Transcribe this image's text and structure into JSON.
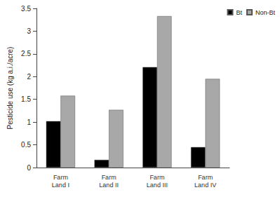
{
  "chart_data": {
    "type": "bar",
    "categories": [
      "Farm Land I",
      "Farm Land II",
      "Farm Land III",
      "Farm Land IV"
    ],
    "series": [
      {
        "name": "Bt",
        "color": "#000000",
        "values": [
          1.02,
          0.17,
          2.21,
          0.45
        ]
      },
      {
        "name": "Non-Bt",
        "color": "#a8a8a8",
        "values": [
          1.58,
          1.27,
          3.33,
          1.95
        ]
      }
    ],
    "y_label": "Pesticide use (kg a.i./acre)",
    "ylim": [
      0,
      3.5
    ],
    "yticks": [
      0,
      0.5,
      1,
      1.5,
      2,
      2.5,
      3,
      3.5
    ],
    "grid": false,
    "legend": "top-right"
  }
}
